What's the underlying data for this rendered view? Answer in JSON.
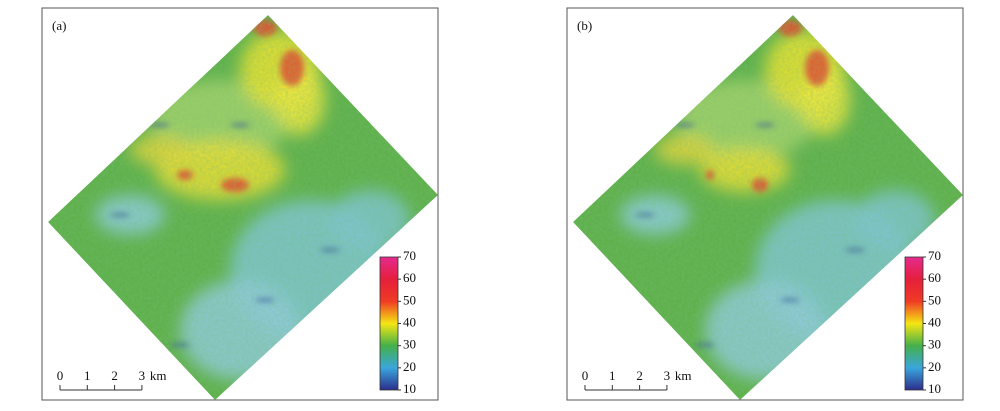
{
  "panels": [
    {
      "label": "(a)",
      "colorbar": {
        "range": [
          10,
          70
        ],
        "ticks": [
          10,
          20,
          30,
          40,
          50,
          60,
          70
        ],
        "colors": [
          "#2c2e8c",
          "#3aa6dc",
          "#45b04a",
          "#f4e613",
          "#ef3b24",
          "#e51f3c",
          "#e52b8f"
        ]
      },
      "scalebar": {
        "ticks": [
          0,
          1,
          2,
          3
        ],
        "unit": "km"
      }
    },
    {
      "label": "(b)",
      "colorbar": {
        "range": [
          10,
          70
        ],
        "ticks": [
          10,
          20,
          30,
          40,
          50,
          60,
          70
        ],
        "colors": [
          "#2c2e8c",
          "#3aa6dc",
          "#45b04a",
          "#f4e613",
          "#ef3b24",
          "#e51f3c",
          "#e52b8f"
        ]
      },
      "scalebar": {
        "ticks": [
          0,
          1,
          2,
          3
        ],
        "unit": "km"
      }
    }
  ]
}
